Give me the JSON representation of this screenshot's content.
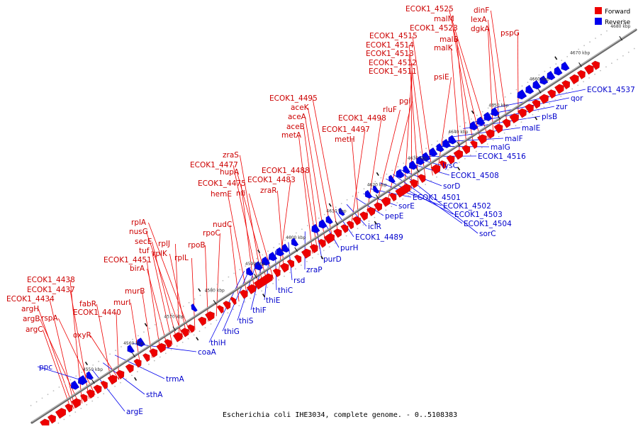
{
  "caption": "Escherichia coli IHE3034, complete genome. - 0..5108383",
  "legend": {
    "forward": "Forward",
    "reverse": "Reverse"
  },
  "colors": {
    "forward": "#ee0000",
    "reverse": "#0000ee",
    "axis": "#7a7a7a",
    "tick": "#111111"
  },
  "ticks": [
    "4550 kbp",
    "4560 kbp",
    "4570 kbp",
    "4580 kbp",
    "4590 kbp",
    "4600 kbp",
    "4610 kbp",
    "4620 kbp",
    "4630 kbp",
    "4640 kbp",
    "4650 kbp",
    "4660 kbp",
    "4670 kbp",
    "4680 kbp"
  ],
  "forward_labels": [
    "ECOK1_4438",
    "ECOK1_4437",
    "ECOK1_4434",
    "argH",
    "argB",
    "argC",
    "rspA",
    "fabR",
    "ECOK1_4440",
    "oxyR",
    "murI",
    "murB",
    "ECOK1_4451",
    "birA",
    "tuf",
    "secE",
    "nusG",
    "rplA",
    "rplJ",
    "rplK",
    "rplL",
    "rpoB",
    "rpoC",
    "nudC",
    "hemE",
    "ECOK1_4475",
    "ECOK1_4477",
    "zraS",
    "hupA",
    "nfi",
    "ECOK1_4483",
    "zraR",
    "ECOK1_4488",
    "metA",
    "aceB",
    "aceA",
    "aceK",
    "ECOK1_4495",
    "ECOK1_4497",
    "metH",
    "ECOK1_4498",
    "rluF",
    "pgi",
    "ECOK1_4511",
    "ECOK1_4512",
    "ECOK1_4513",
    "ECOK1_4514",
    "ECOK1_4515",
    "psiE",
    "malK",
    "malB",
    "ECOK1_4523",
    "malM",
    "ECOK1_4525",
    "dgkA",
    "lexA",
    "dinF",
    "pspG"
  ],
  "reverse_labels": [
    "ppc",
    "argE",
    "sthA",
    "trmA",
    "coaA",
    "thiH",
    "thiG",
    "thiS",
    "thiF",
    "thiE",
    "thiC",
    "rsd",
    "zraP",
    "purD",
    "purH",
    "ECOK1_4489",
    "iclR",
    "pepE",
    "sorE",
    "ECOK1_4501",
    "ECOK1_4502",
    "ECOK1_4503",
    "ECOK1_4504",
    "sorC",
    "sorD",
    "ECOK1_4508",
    "lysC",
    "ECOK1_4516",
    "malG",
    "malF",
    "malE",
    "plsB",
    "zur",
    "qor",
    "ECOK1_4537"
  ]
}
